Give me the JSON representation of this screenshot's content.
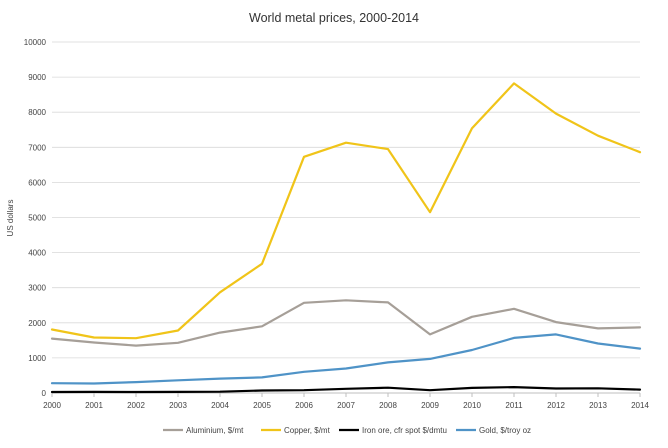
{
  "chart_data": {
    "type": "line",
    "title": "World  metal prices, 2000-2014",
    "xlabel": "",
    "ylabel": "US dollars",
    "x": [
      "2000",
      "2001",
      "2002",
      "2003",
      "2004",
      "2005",
      "2006",
      "2007",
      "2008",
      "2009",
      "2010",
      "2011",
      "2012",
      "2013",
      "2014"
    ],
    "ylim": [
      0,
      10000
    ],
    "yticks": [
      "0",
      "1000",
      "2000",
      "3000",
      "4000",
      "5000",
      "6000",
      "7000",
      "8000",
      "9000",
      "10000"
    ],
    "grid": "horizontal",
    "legend_position": "bottom",
    "series": [
      {
        "name": "Aluminium, $/mt",
        "color": "#a69f98",
        "values": [
          1550,
          1440,
          1350,
          1430,
          1720,
          1900,
          2570,
          2640,
          2580,
          1670,
          2170,
          2400,
          2020,
          1840,
          1870
        ]
      },
      {
        "name": "Copper, $/mt",
        "color": "#f0c419",
        "values": [
          1810,
          1580,
          1560,
          1780,
          2870,
          3680,
          6730,
          7130,
          6950,
          5150,
          7540,
          8820,
          7960,
          7330,
          6860
        ]
      },
      {
        "name": "Iron ore, cfr spot $/dmtu",
        "color": "#000000",
        "values": [
          29,
          30,
          29,
          32,
          38,
          70,
          80,
          120,
          150,
          80,
          146,
          168,
          128,
          135,
          97
        ]
      },
      {
        "name": "Gold, $/troy oz",
        "color": "#4f93c7",
        "values": [
          279,
          271,
          310,
          363,
          410,
          445,
          604,
          697,
          872,
          972,
          1225,
          1569,
          1670,
          1411,
          1266
        ]
      }
    ]
  }
}
